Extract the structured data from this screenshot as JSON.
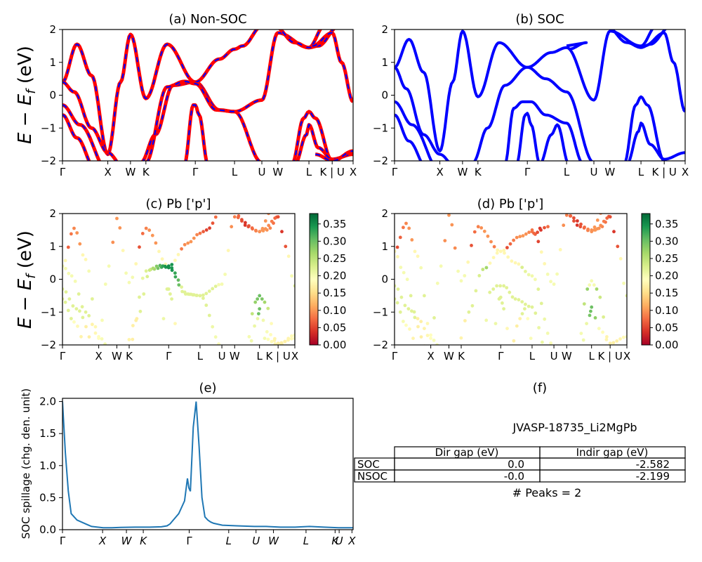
{
  "panels": [
    {
      "id": "a",
      "title": "(a) Non-SOC",
      "ylabel": "E − E_f (eV)",
      "ylim": [
        -2,
        2
      ],
      "yticks": [
        "−2",
        "−1",
        "0",
        "1",
        "2"
      ],
      "kticks": [
        "Γ",
        "X",
        "W",
        "K",
        "Γ",
        "L",
        "U",
        "W",
        "L",
        "K | U",
        "X"
      ]
    },
    {
      "id": "b",
      "title": "(b) SOC",
      "ylim": [
        -2,
        2
      ],
      "yticks": [
        "−2",
        "−1",
        "0",
        "1",
        "2"
      ],
      "kticks": [
        "Γ",
        "X",
        "W",
        "K",
        "Γ",
        "L",
        "U",
        "W",
        "L",
        "K | U",
        "X"
      ]
    },
    {
      "id": "c",
      "title": "(c)  Pb ['p']",
      "ylabel": "E − E_f (eV)",
      "ylim": [
        -2,
        2
      ],
      "yticks": [
        "−2",
        "−1",
        "0",
        "1",
        "2"
      ],
      "kticks": [
        "Γ",
        "X",
        "W",
        "K",
        "Γ",
        "L",
        "U",
        "W",
        "L",
        "K | U",
        "X"
      ],
      "colorbar_ticks": [
        "0.00",
        "0.05",
        "0.10",
        "0.15",
        "0.20",
        "0.25",
        "0.30",
        "0.35"
      ]
    },
    {
      "id": "d",
      "title": "(d) Pb ['p']",
      "ylim": [
        -2,
        2
      ],
      "yticks": [
        "−2",
        "−1",
        "0",
        "1",
        "2"
      ],
      "kticks": [
        "Γ",
        "X",
        "W",
        "K",
        "Γ",
        "L",
        "U",
        "W",
        "L",
        "K | U",
        "X"
      ],
      "colorbar_ticks": [
        "0.00",
        "0.05",
        "0.10",
        "0.15",
        "0.20",
        "0.25",
        "0.30",
        "0.35"
      ]
    },
    {
      "id": "e",
      "title": "(e)",
      "ylabel": "SOC spillage (chg. den. unit)",
      "ylim": [
        0,
        2.05
      ],
      "yticks": [
        "0.0",
        "0.5",
        "1.0",
        "1.5",
        "2.0"
      ],
      "kticks": [
        "Γ",
        "X",
        "W",
        "K",
        "Γ",
        "L",
        "U",
        "W",
        "L",
        "K",
        "U",
        "X"
      ]
    }
  ],
  "panel_f": {
    "title": "(f)",
    "material": "JVASP-18735_Li2MgPb",
    "col_headers": [
      "Dir gap (eV)",
      "Indir gap (eV)"
    ],
    "rows": [
      {
        "label": "SOC",
        "dir": "0.0",
        "indir": "-2.582"
      },
      {
        "label": "NSOC",
        "dir": "-0.0",
        "indir": "-2.199"
      }
    ],
    "peaks": "# Peaks = 2"
  },
  "colors": {
    "nonsoc_outer": "#ff0000",
    "nonsoc_inner": "#0000ff",
    "soc": "#0000ff",
    "spillage": "#1f77b4",
    "colormap": [
      "#a50026",
      "#d73027",
      "#f46d43",
      "#fdae61",
      "#fee08b",
      "#ffffbf",
      "#d9ef8b",
      "#a6d96a",
      "#66bd63",
      "#1a9850",
      "#006837"
    ]
  },
  "chart_data": [
    {
      "type": "line",
      "title": "(a) Non-SOC",
      "ylabel": "E − E_f (eV)",
      "ylim": [
        -2,
        2
      ],
      "x": [
        0,
        0.05,
        0.15,
        0.2,
        0.3,
        0.35,
        0.5,
        0.65,
        0.73,
        0.85,
        0.9,
        0.97,
        1.0
      ],
      "x_labels": [
        "Γ",
        "",
        "",
        "X",
        "",
        "W",
        "Γ",
        "",
        "L",
        "",
        "",
        "",
        "X"
      ],
      "series": [
        {
          "values": [
            0.4,
            1.55,
            0.0,
            -1.8,
            1.0,
            1.9,
            0.4,
            -0.4,
            -0.5,
            1.9,
            -2.0,
            -2.0,
            -1.8
          ]
        },
        {
          "values": [
            -0.3,
            -1.2,
            -1.6,
            -1.8,
            0.8,
            -0.2,
            0.4,
            1.4,
            1.45,
            -0.1,
            1.5,
            1.7,
            1.9
          ]
        },
        {
          "values": [
            -0.6,
            -1.8,
            -2.0,
            -2.0,
            -2.0,
            -0.2,
            0.25,
            -0.5,
            -2.0,
            -2.0,
            -0.5,
            -1.0,
            -2.0
          ]
        }
      ]
    },
    {
      "type": "line",
      "title": "(b) SOC",
      "ylim": [
        -2,
        2
      ],
      "series": [
        {
          "values": [
            0.85,
            1.7,
            0.0,
            -1.7,
            1.95,
            -0.1,
            0.85,
            1.45,
            1.5,
            -0.15,
            1.45,
            2.0,
            -1.7
          ]
        },
        {
          "values": [
            -0.2,
            -1.5,
            -2.0,
            -1.8,
            0.8,
            -0.2,
            -0.2,
            -0.8,
            -2.0,
            -2.0,
            -0.05,
            -0.9,
            -2.0
          ]
        }
      ]
    },
    {
      "type": "scatter",
      "title": "(c)  Pb ['p']",
      "ylim": [
        -2,
        2
      ],
      "colorbar_range": [
        0,
        0.38
      ]
    },
    {
      "type": "scatter",
      "title": "(d) Pb ['p']",
      "ylim": [
        -2,
        2
      ],
      "colorbar_range": [
        0,
        0.38
      ]
    },
    {
      "type": "line",
      "title": "(e)",
      "ylabel": "SOC spillage (chg. den. unit)",
      "ylim": [
        0,
        2.05
      ],
      "x": [
        0,
        0.01,
        0.02,
        0.03,
        0.05,
        0.08,
        0.1,
        0.14,
        0.17,
        0.2,
        0.25,
        0.3,
        0.34,
        0.36,
        0.37,
        0.4,
        0.42,
        0.43,
        0.435,
        0.44,
        0.45,
        0.46,
        0.47,
        0.48,
        0.49,
        0.5,
        0.51,
        0.52,
        0.55,
        0.6,
        0.66,
        0.7,
        0.75,
        0.8,
        0.85,
        0.9,
        0.95,
        1.0
      ],
      "values": [
        2.0,
        1.2,
        0.6,
        0.25,
        0.15,
        0.09,
        0.05,
        0.03,
        0.03,
        0.035,
        0.04,
        0.04,
        0.045,
        0.06,
        0.09,
        0.25,
        0.45,
        0.8,
        0.65,
        0.6,
        1.6,
        2.0,
        1.3,
        0.5,
        0.2,
        0.15,
        0.12,
        0.1,
        0.07,
        0.06,
        0.05,
        0.05,
        0.04,
        0.04,
        0.05,
        0.04,
        0.03,
        0.03
      ]
    }
  ]
}
